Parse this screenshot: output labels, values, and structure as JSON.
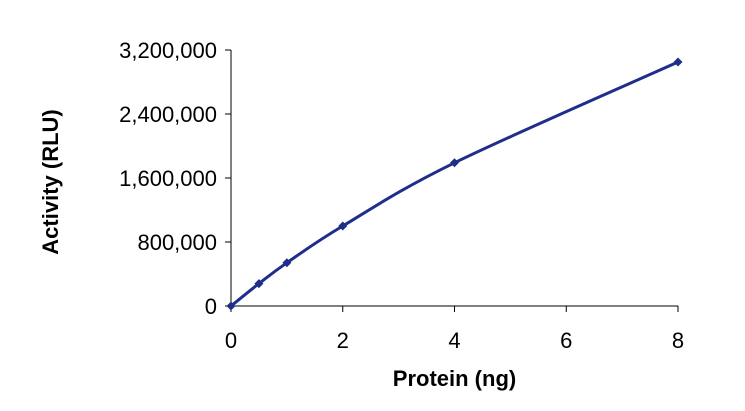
{
  "chart_data": {
    "type": "line",
    "title": "",
    "xlabel": "Protein (ng)",
    "ylabel": "Activity (RLU)",
    "xlim": [
      0,
      8
    ],
    "ylim": [
      0,
      3200000
    ],
    "x_ticks": [
      0,
      2,
      4,
      6,
      8
    ],
    "x_tick_labels": [
      "0",
      "2",
      "4",
      "6",
      "8"
    ],
    "y_ticks": [
      0,
      800000,
      1600000,
      2400000,
      3200000
    ],
    "y_tick_labels": [
      "0",
      "800,000",
      "1,600,000",
      "2,400,000",
      "3,200,000"
    ],
    "grid": false,
    "legend": "none",
    "series": [
      {
        "color": "#1f2e8a",
        "marker": "diamond",
        "x": [
          0,
          0.5,
          1,
          2,
          4,
          8
        ],
        "y": [
          0,
          280000,
          540000,
          1000000,
          1790000,
          3050000
        ]
      }
    ]
  }
}
